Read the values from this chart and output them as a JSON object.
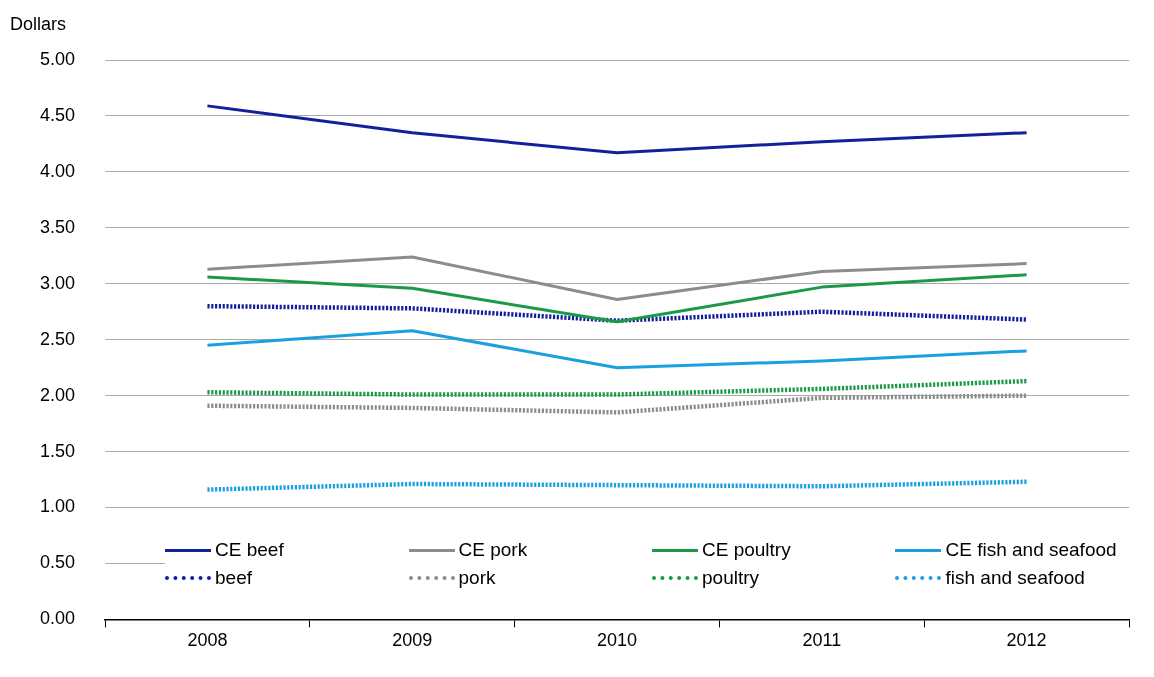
{
  "chart_data": {
    "type": "line",
    "ylabel": "Dollars",
    "categories": [
      "2008",
      "2009",
      "2010",
      "2011",
      "2012"
    ],
    "series": [
      {
        "name": "CE beef",
        "color": "#14209b",
        "line_style": "solid",
        "values": [
          4.59,
          4.35,
          4.17,
          4.27,
          4.35
        ]
      },
      {
        "name": "CE pork",
        "color": "#8c8c8c",
        "line_style": "solid",
        "values": [
          3.13,
          3.24,
          2.86,
          3.11,
          3.18
        ]
      },
      {
        "name": "CE poultry",
        "color": "#1a9a48",
        "line_style": "solid",
        "values": [
          3.06,
          2.96,
          2.66,
          2.97,
          3.08
        ]
      },
      {
        "name": "CE fish and seafood",
        "color": "#1aa0e0",
        "line_style": "solid",
        "values": [
          2.45,
          2.58,
          2.25,
          2.31,
          2.4
        ]
      },
      {
        "name": "beef",
        "color": "#14209b",
        "line_style": "dotted",
        "values": [
          2.8,
          2.78,
          2.67,
          2.75,
          2.68
        ]
      },
      {
        "name": "pork",
        "color": "#8c8c8c",
        "line_style": "dotted",
        "values": [
          1.91,
          1.89,
          1.85,
          1.98,
          2.0
        ]
      },
      {
        "name": "poultry",
        "color": "#1a9a48",
        "line_style": "dotted",
        "values": [
          2.03,
          2.01,
          2.01,
          2.06,
          2.13
        ]
      },
      {
        "name": "fish and seafood",
        "color": "#1aa0e0",
        "line_style": "dotted",
        "values": [
          1.16,
          1.21,
          1.2,
          1.19,
          1.23
        ]
      }
    ],
    "ylim": [
      0,
      5
    ],
    "yticks": [
      {
        "value": 0,
        "label": "0.00"
      },
      {
        "value": 0.5,
        "label": "0.50"
      },
      {
        "value": 1,
        "label": "1.00"
      },
      {
        "value": 1.5,
        "label": "1.50"
      },
      {
        "value": 2,
        "label": "2.00"
      },
      {
        "value": 2.5,
        "label": "2.50"
      },
      {
        "value": 3,
        "label": "3.00"
      },
      {
        "value": 3.5,
        "label": "3.50"
      },
      {
        "value": 4,
        "label": "4.00"
      },
      {
        "value": 4.5,
        "label": "4.50"
      },
      {
        "value": 5,
        "label": "5.00"
      }
    ],
    "grid": "y",
    "legend": "bottom",
    "marker": "none"
  }
}
